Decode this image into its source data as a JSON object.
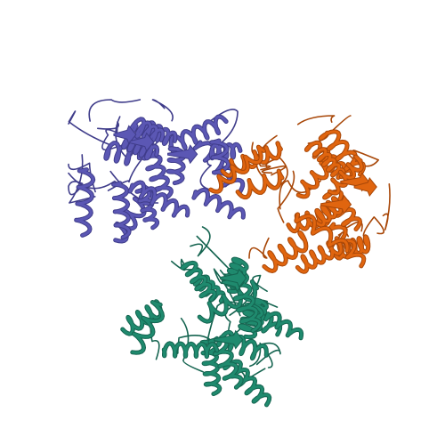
{
  "scene": {
    "background": "#ffffff",
    "subject": "protein-ribbon-trimer"
  },
  "chains": [
    {
      "id": "A",
      "color": "#5b57b4",
      "shade": "#3f3c8a"
    },
    {
      "id": "B",
      "color": "#e0650f",
      "shade": "#a84708"
    },
    {
      "id": "C",
      "color": "#1f8a6e",
      "shade": "#156450"
    }
  ]
}
